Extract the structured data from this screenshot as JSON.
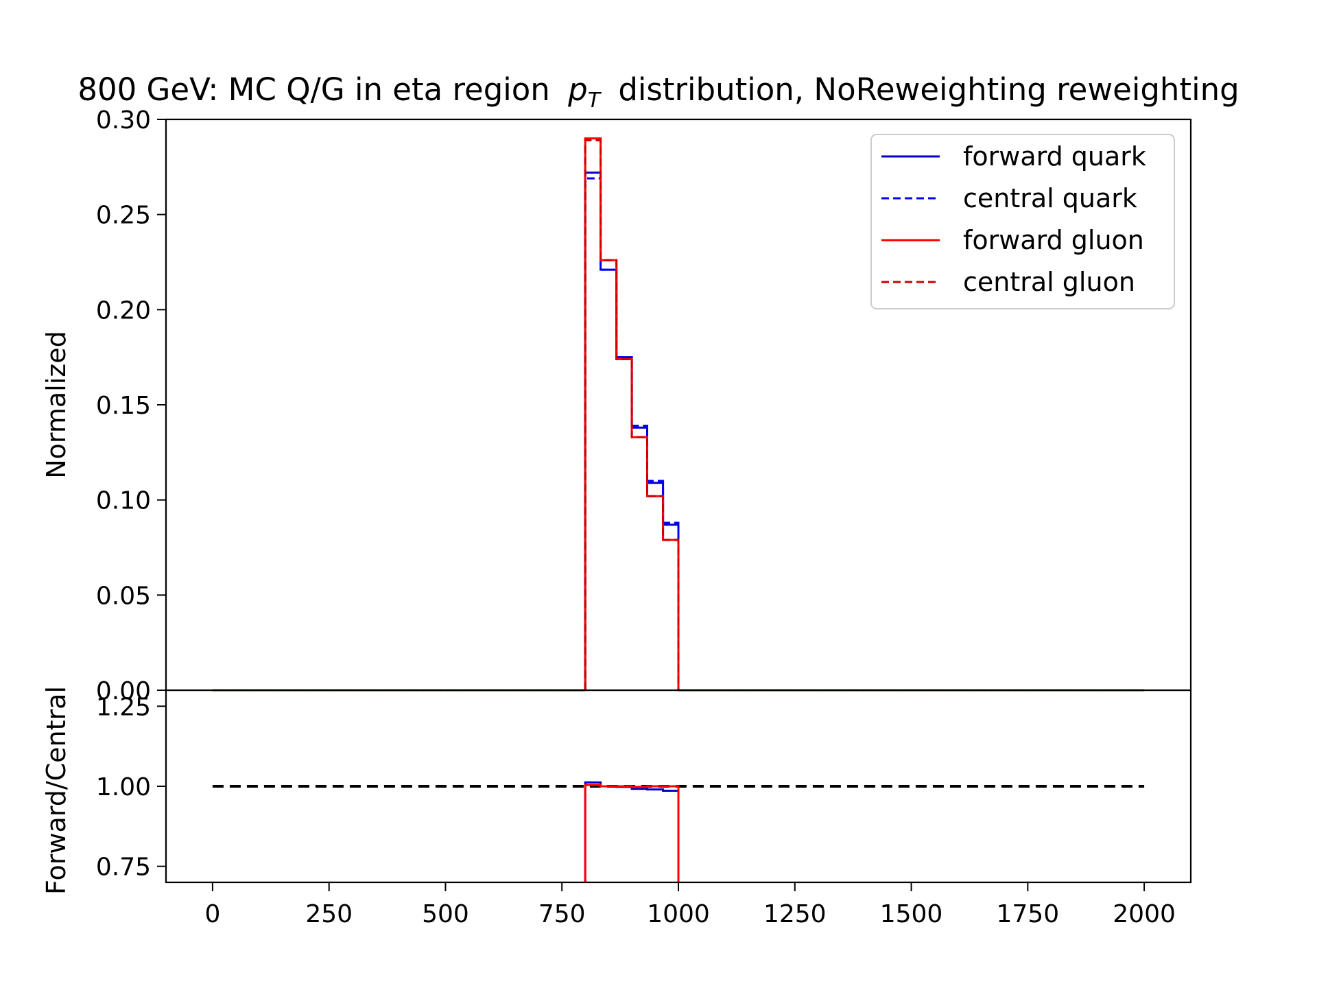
{
  "chart_data": [
    {
      "type": "line",
      "panel": "main",
      "title": "800 GeV: MC Q/G in eta region",
      "title_math_symbol": "p",
      "title_math_subscript": "T",
      "title_suffix": "distribution, NoReweighting reweighting",
      "xlabel": "",
      "ylabel": "Normalized",
      "xlim": [
        -100,
        2100
      ],
      "ylim": [
        0,
        0.3
      ],
      "yticks": [
        0.0,
        0.05,
        0.1,
        0.15,
        0.2,
        0.25,
        0.3
      ],
      "ytick_labels": [
        "0.00",
        "0.05",
        "0.10",
        "0.15",
        "0.20",
        "0.25",
        "0.30"
      ],
      "legend_position": "top-right",
      "bin_edges": [
        0,
        100,
        200,
        300,
        400,
        500,
        600,
        700,
        800,
        833,
        867,
        900,
        933,
        967,
        1000,
        1100,
        1200,
        1300,
        1400,
        1500,
        1600,
        1700,
        1800,
        1900,
        2000
      ],
      "series": [
        {
          "name": "forward quark",
          "color": "#0000cc",
          "dash": "solid",
          "values": [
            0,
            0,
            0,
            0,
            0,
            0,
            0,
            0,
            0.272,
            0.221,
            0.175,
            0.138,
            0.109,
            0.087,
            0,
            0,
            0,
            0,
            0,
            0,
            0,
            0,
            0,
            0
          ]
        },
        {
          "name": "central quark",
          "color": "#0000ff",
          "dash": "dashed",
          "values": [
            0,
            0,
            0,
            0,
            0,
            0,
            0,
            0,
            0.269,
            0.221,
            0.175,
            0.139,
            0.11,
            0.088,
            0,
            0,
            0,
            0,
            0,
            0,
            0,
            0,
            0,
            0
          ]
        },
        {
          "name": "forward gluon",
          "color": "#ff0000",
          "dash": "solid",
          "values": [
            0,
            0,
            0,
            0,
            0,
            0,
            0,
            0,
            0.29,
            0.226,
            0.174,
            0.133,
            0.102,
            0.079,
            0,
            0,
            0,
            0,
            0,
            0,
            0,
            0,
            0,
            0
          ]
        },
        {
          "name": "central gluon",
          "color": "#cc0000",
          "dash": "dashed",
          "values": [
            0,
            0,
            0,
            0,
            0,
            0,
            0,
            0,
            0.289,
            0.226,
            0.174,
            0.133,
            0.102,
            0.079,
            0,
            0,
            0,
            0,
            0,
            0,
            0,
            0,
            0,
            0
          ]
        }
      ]
    },
    {
      "type": "line",
      "panel": "ratio",
      "xlabel": "",
      "ylabel": "Forward/Central",
      "xlim": [
        -100,
        2100
      ],
      "ylim": [
        0.7,
        1.3
      ],
      "xticks": [
        0,
        250,
        500,
        750,
        1000,
        1250,
        1500,
        1750,
        2000
      ],
      "xtick_labels": [
        "0",
        "250",
        "500",
        "750",
        "1000",
        "1250",
        "1500",
        "1750",
        "2000"
      ],
      "yticks": [
        0.75,
        1.0,
        1.25
      ],
      "ytick_labels": [
        "0.75",
        "1.00",
        "1.25"
      ],
      "reference_line": {
        "y": 1.0,
        "x": [
          0,
          2000
        ],
        "color": "#000000",
        "dash": "dashed"
      },
      "bin_edges": [
        800,
        833,
        867,
        900,
        933,
        967,
        1000
      ],
      "series": [
        {
          "color": "#0000cc",
          "values": [
            1.012,
            1.0,
            0.998,
            0.992,
            0.99,
            0.986
          ]
        },
        {
          "color": "#ff0000",
          "values": [
            1.004,
            1.0,
            1.0,
            0.998,
            1.0,
            1.0
          ]
        }
      ]
    }
  ]
}
